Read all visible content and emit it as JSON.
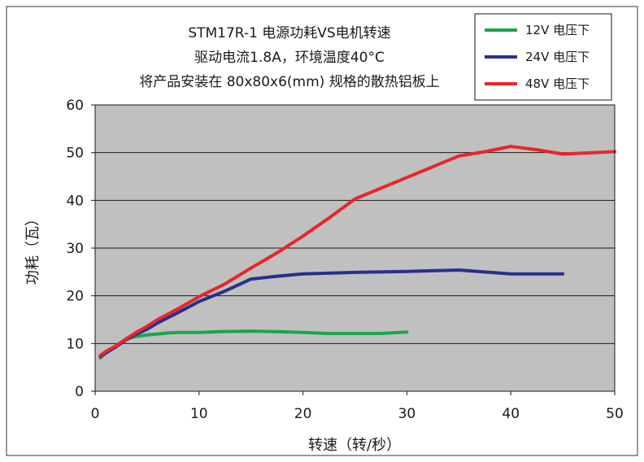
{
  "chart_data": {
    "type": "line",
    "title_lines": [
      "STM17R-1 电源功耗VS电机转速",
      "驱动电流1.8A，环境温度40°C",
      "将产品安装在 80x80x6(mm) 规格的散热铝板上"
    ],
    "xlabel": "转速（转/秒）",
    "ylabel": "功耗（瓦）",
    "xlim": [
      0,
      50
    ],
    "ylim": [
      0,
      60
    ],
    "xticks": [
      "0",
      "10",
      "20",
      "30",
      "40",
      "50"
    ],
    "yticks": [
      "0",
      "10",
      "20",
      "30",
      "40",
      "50",
      "60"
    ],
    "grid": "horizontal",
    "legend_position": "top-right",
    "plot_background": "#c0c0c0",
    "series": [
      {
        "name": "12V 电压下",
        "color": "#1aa64a",
        "points": [
          [
            0.5,
            7.0
          ],
          [
            1,
            8
          ],
          [
            2,
            9.5
          ],
          [
            3,
            11
          ],
          [
            4,
            11.5
          ],
          [
            5,
            11.8
          ],
          [
            6,
            12.0
          ],
          [
            7,
            12.2
          ],
          [
            8,
            12.3
          ],
          [
            10,
            12.3
          ],
          [
            12,
            12.5
          ],
          [
            15,
            12.6
          ],
          [
            17.5,
            12.5
          ],
          [
            20,
            12.3
          ],
          [
            22.5,
            12.1
          ],
          [
            25,
            12.1
          ],
          [
            27.5,
            12.1
          ],
          [
            30,
            12.4
          ]
        ]
      },
      {
        "name": "24V 电压下",
        "color": "#2a2f8e",
        "points": [
          [
            0.5,
            7.3
          ],
          [
            1,
            8
          ],
          [
            2,
            9.3
          ],
          [
            3,
            10.8
          ],
          [
            4,
            12
          ],
          [
            5,
            13
          ],
          [
            6,
            14.3
          ],
          [
            8,
            16.5
          ],
          [
            10,
            18.8
          ],
          [
            12.5,
            21
          ],
          [
            15,
            23.5
          ],
          [
            17.5,
            24.1
          ],
          [
            20,
            24.6
          ],
          [
            25,
            24.9
          ],
          [
            30,
            25.1
          ],
          [
            35,
            25.4
          ],
          [
            40,
            24.6
          ],
          [
            45,
            24.6
          ]
        ]
      },
      {
        "name": "48V 电压下",
        "color": "#e8262a",
        "points": [
          [
            0.5,
            7.5
          ],
          [
            1,
            8.3
          ],
          [
            2,
            9.5
          ],
          [
            3,
            11
          ],
          [
            4,
            12.4
          ],
          [
            5,
            13.6
          ],
          [
            6,
            15
          ],
          [
            8,
            17.3
          ],
          [
            10,
            19.8
          ],
          [
            12.5,
            22.5
          ],
          [
            15,
            25.8
          ],
          [
            17.5,
            29
          ],
          [
            20,
            32.5
          ],
          [
            22.5,
            36.3
          ],
          [
            25,
            40.3
          ],
          [
            30,
            44.8
          ],
          [
            35,
            49.3
          ],
          [
            37.5,
            50.2
          ],
          [
            40,
            51.3
          ],
          [
            42.5,
            50.6
          ],
          [
            45,
            49.7
          ],
          [
            50,
            50.2
          ]
        ]
      }
    ]
  }
}
